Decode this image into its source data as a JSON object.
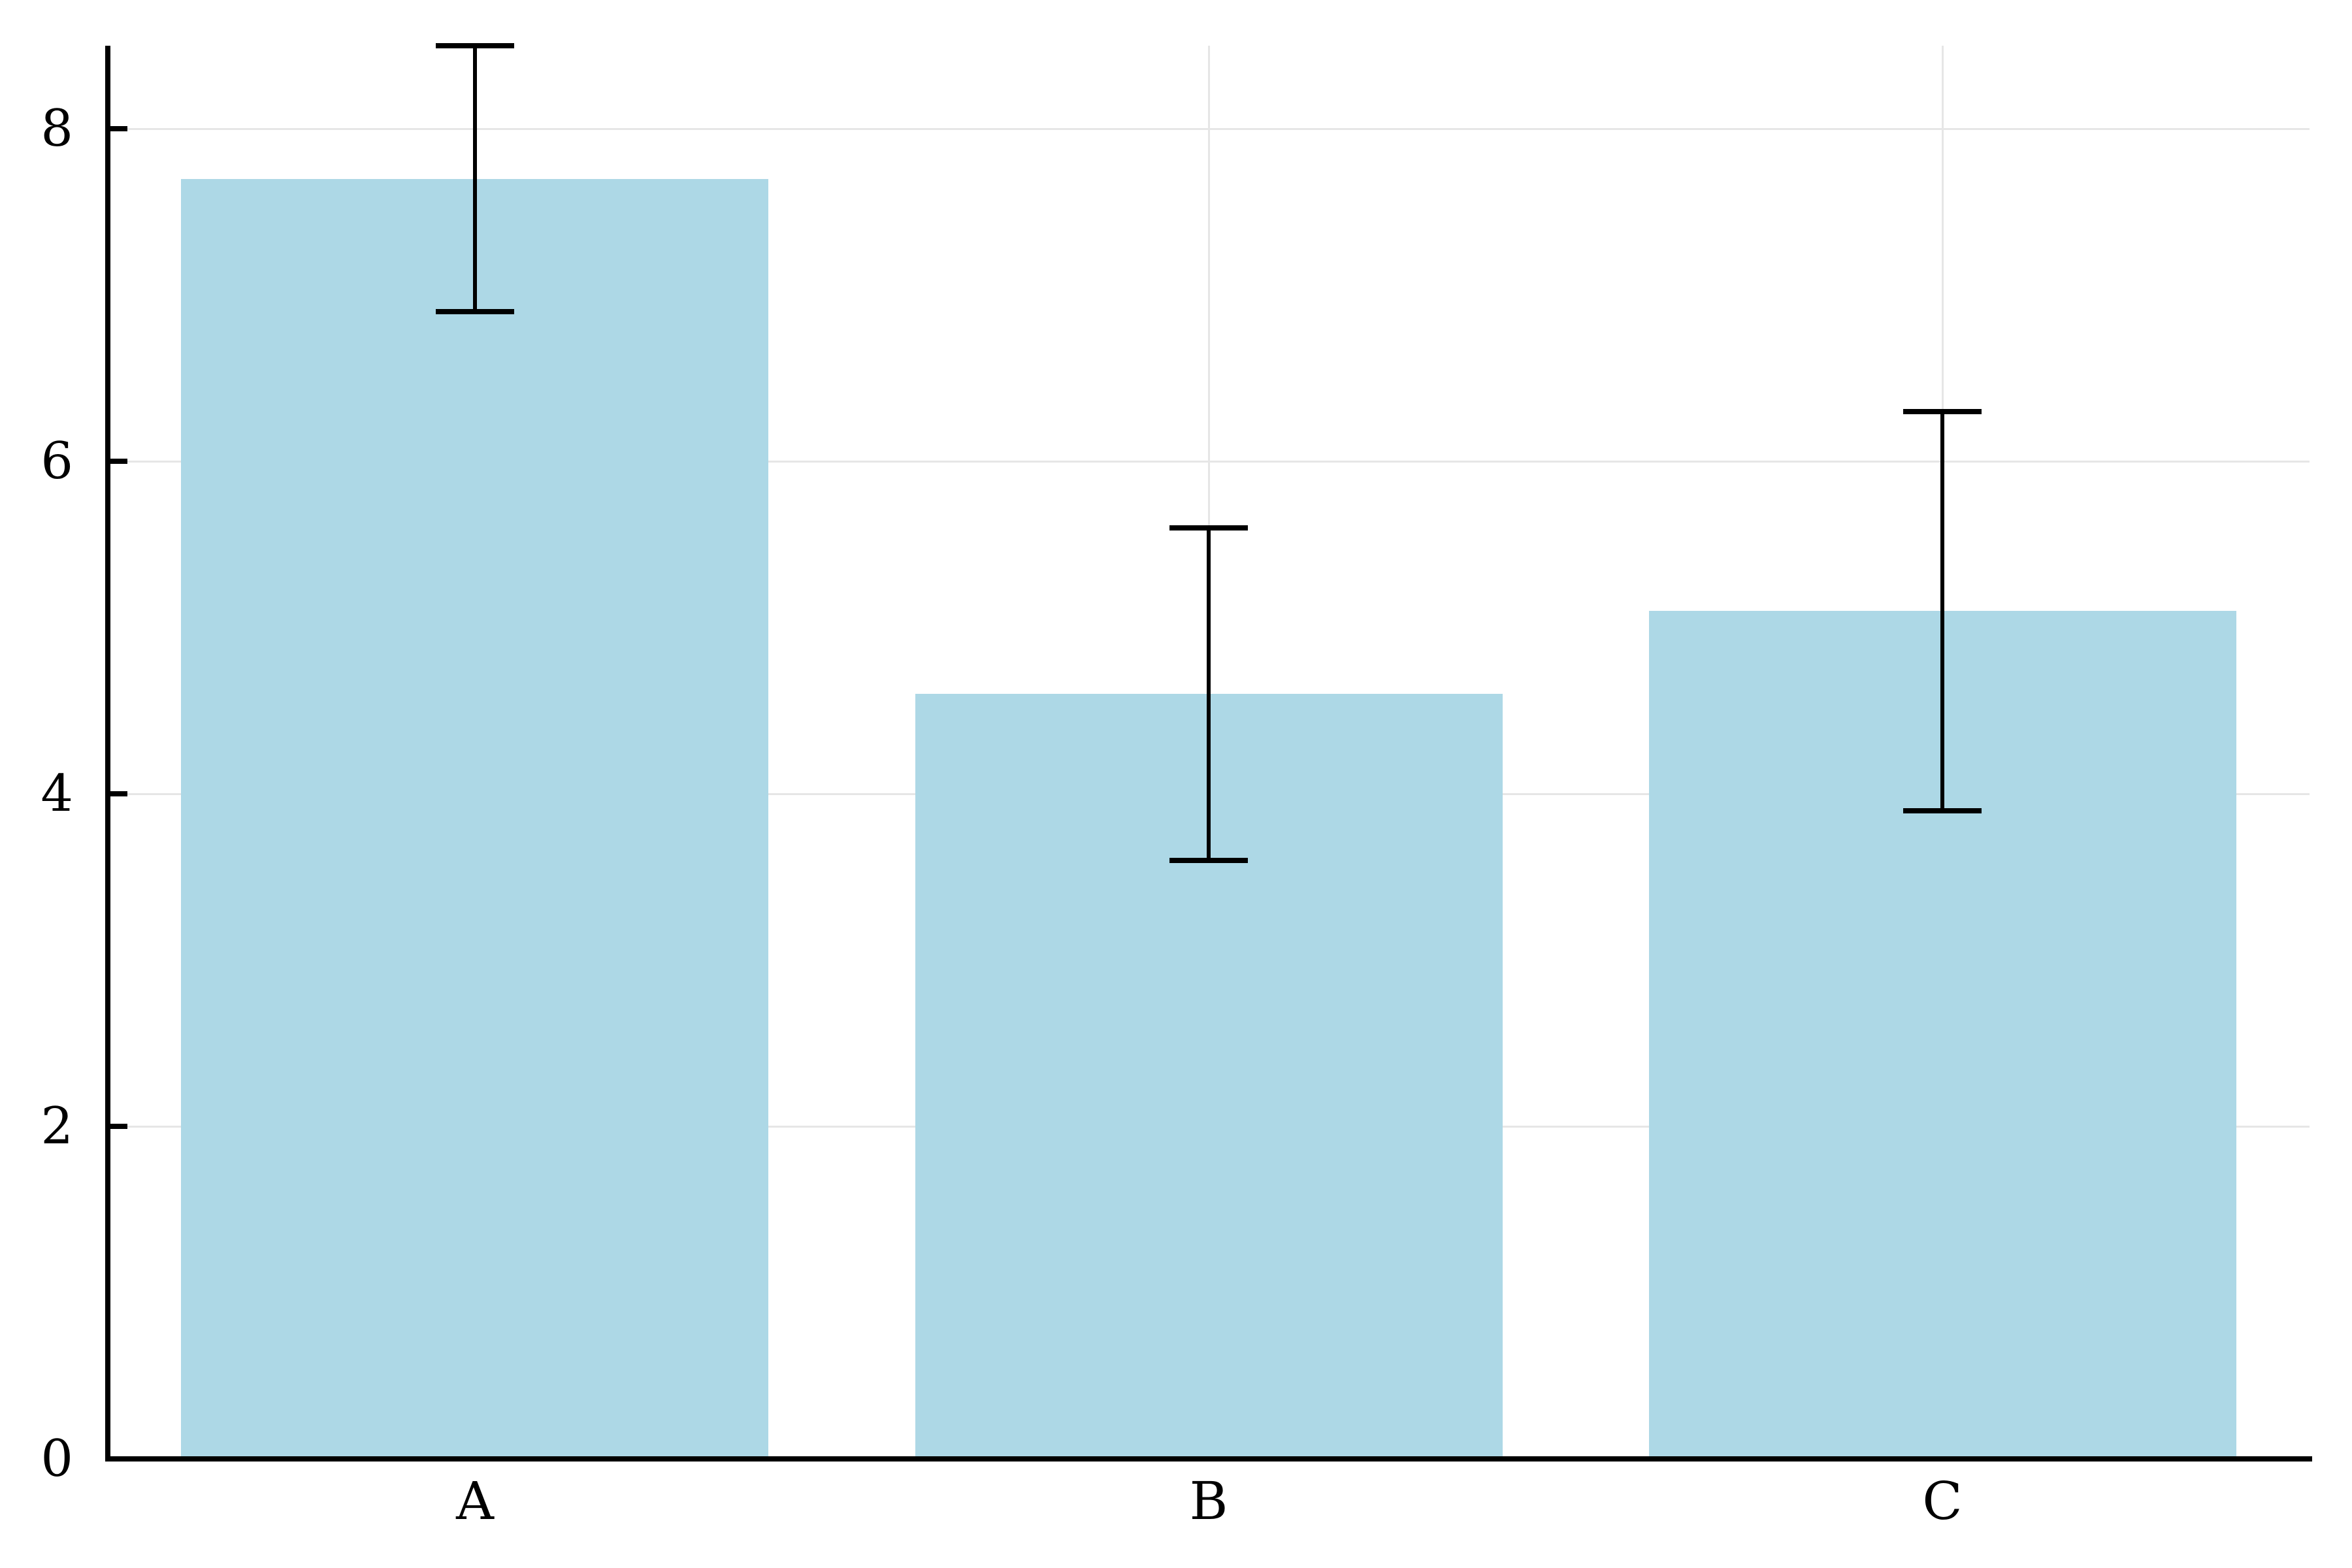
{
  "chart_data": {
    "type": "bar",
    "title": "",
    "xlabel": "",
    "ylabel": "",
    "categories": [
      "A",
      "B",
      "C"
    ],
    "values": [
      7.7,
      4.6,
      5.1
    ],
    "error_low": [
      6.9,
      3.6,
      3.9
    ],
    "error_high": [
      8.5,
      5.6,
      6.3
    ],
    "ylim": [
      0,
      8.5
    ],
    "yticks": [
      0,
      2,
      4,
      6,
      8
    ],
    "ytick_labels": [
      "0",
      "2",
      "4",
      "6",
      "8"
    ],
    "grid": true,
    "legend": false,
    "bar_width_fraction": 0.8,
    "colors": {
      "bar_fill": "#ADD8E6",
      "error_bar": "#000000",
      "axis": "#000000",
      "gridline": "#E6E6E6",
      "tick_label": "#000000",
      "background": "#FFFFFF"
    }
  }
}
